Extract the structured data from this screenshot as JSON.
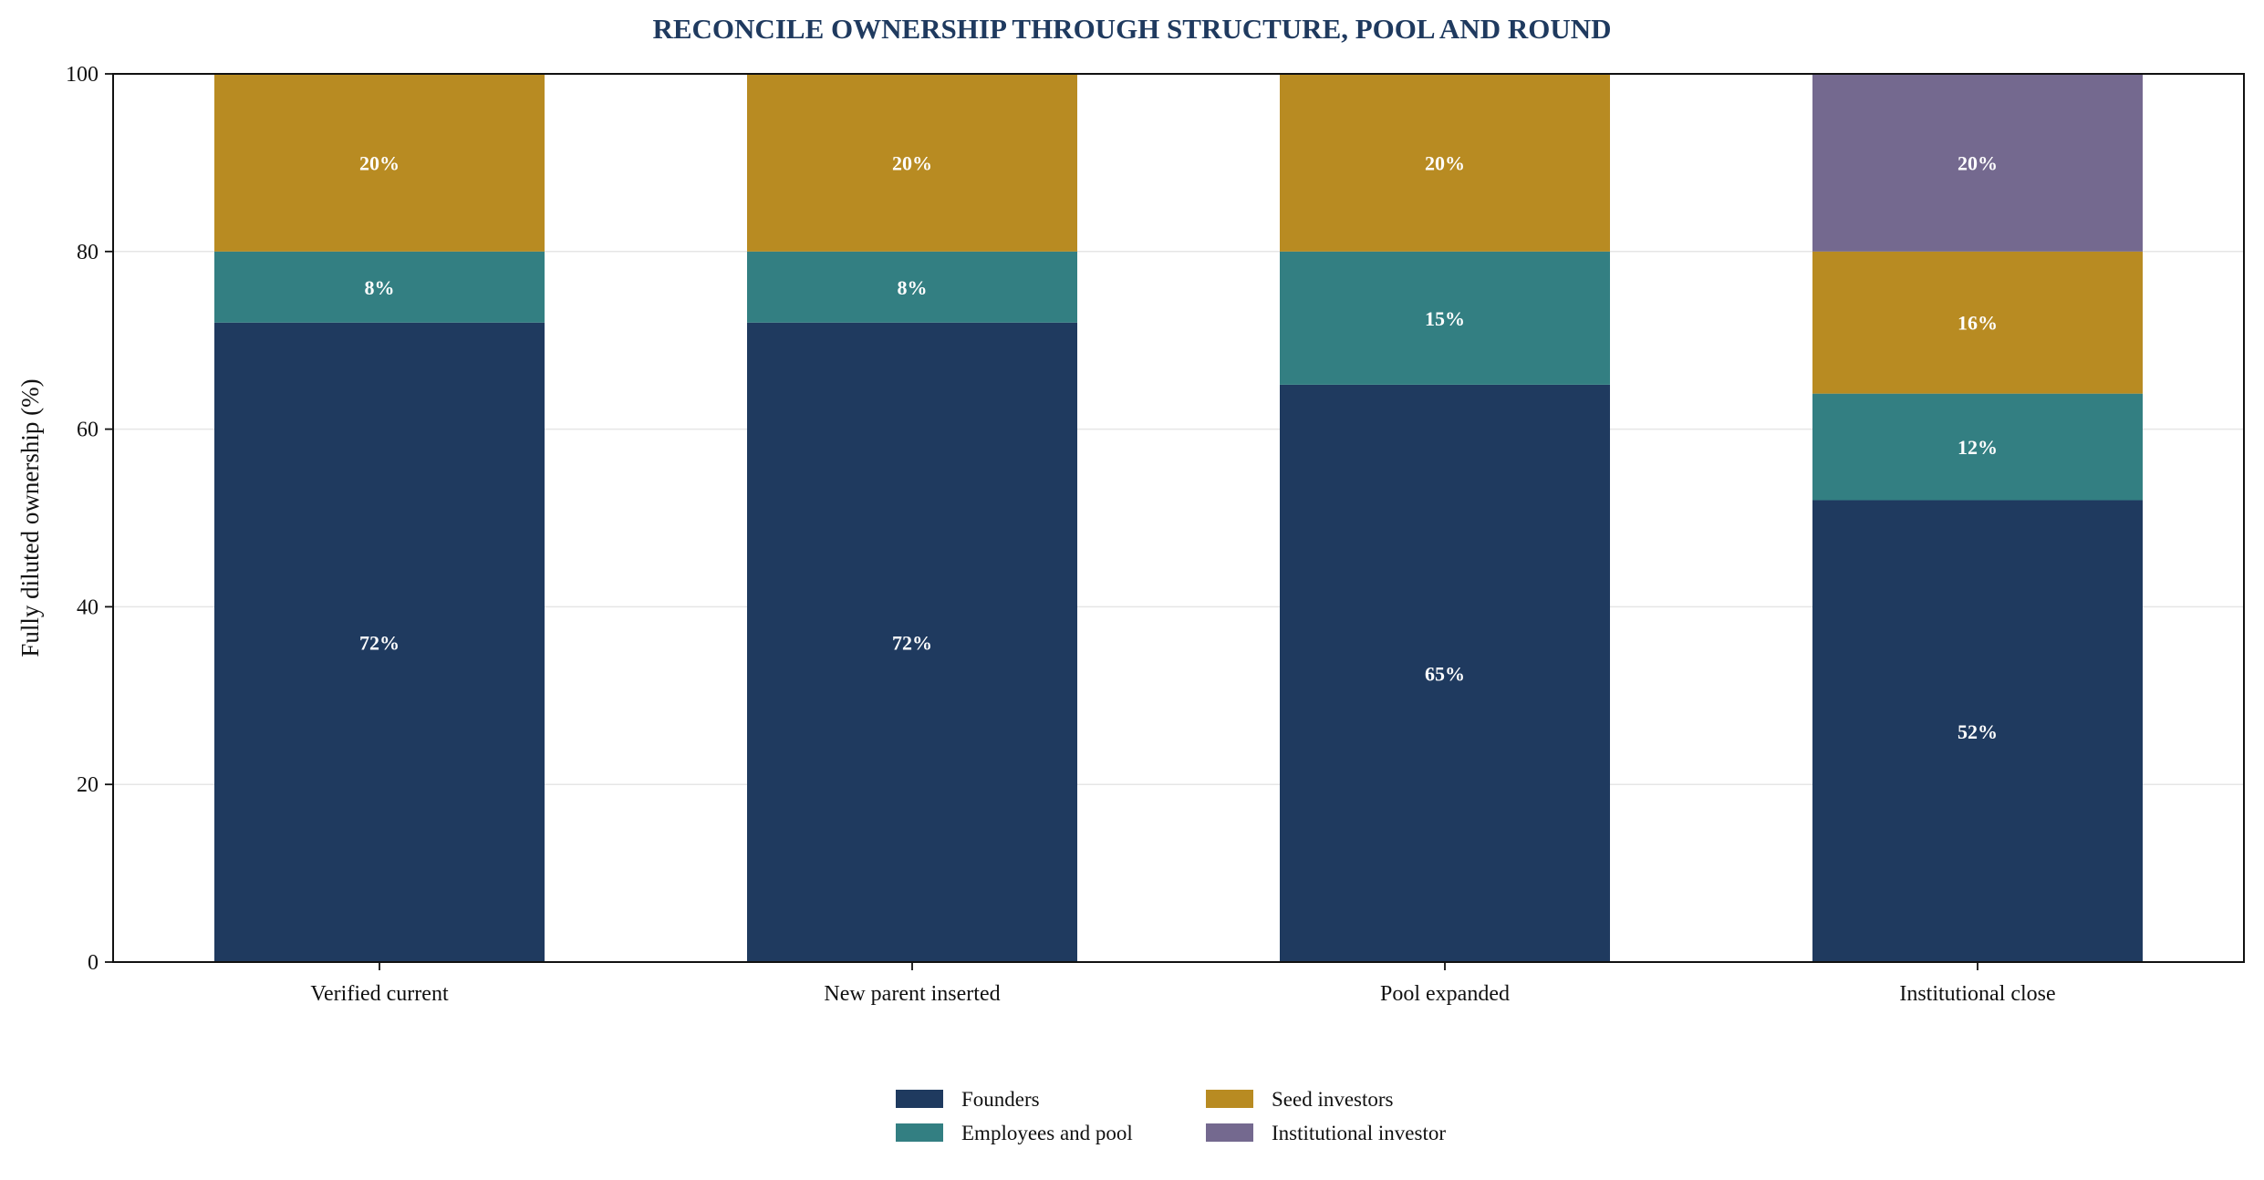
{
  "colors": {
    "title": "#1f3a5f",
    "founders": "#1f3a5f",
    "employees": "#337f82",
    "seed": "#b88b22",
    "institutional": "#74698f",
    "grid": "#e6e6e6",
    "axis": "#111111"
  },
  "chart_data": {
    "type": "bar",
    "stacked": true,
    "title": "RECONCILE OWNERSHIP THROUGH STRUCTURE, POOL AND ROUND",
    "xlabel": "",
    "ylabel": "Fully diluted ownership (%)",
    "ylim": [
      0,
      100
    ],
    "yticks": [
      0,
      20,
      40,
      60,
      80,
      100
    ],
    "ytick_labels": [
      "0",
      "20",
      "40",
      "60",
      "80",
      "100"
    ],
    "grid": "horizontal",
    "legend_position": "bottom-center",
    "categories": [
      "Verified current",
      "New parent inserted",
      "Pool expanded",
      "Institutional close"
    ],
    "series": [
      {
        "key": "founders",
        "name": "Founders",
        "values": [
          72,
          72,
          65,
          52
        ],
        "labels": [
          "72%",
          "72%",
          "65%",
          "52%"
        ]
      },
      {
        "key": "employees",
        "name": "Employees and pool",
        "values": [
          8,
          8,
          15,
          12
        ],
        "labels": [
          "8%",
          "8%",
          "15%",
          "12%"
        ]
      },
      {
        "key": "seed",
        "name": "Seed investors",
        "values": [
          20,
          20,
          20,
          16
        ],
        "labels": [
          "20%",
          "20%",
          "20%",
          "16%"
        ]
      },
      {
        "key": "institutional",
        "name": "Institutional investor",
        "values": [
          0,
          0,
          0,
          20
        ],
        "labels": [
          "",
          "",
          "",
          "20%"
        ]
      }
    ]
  }
}
